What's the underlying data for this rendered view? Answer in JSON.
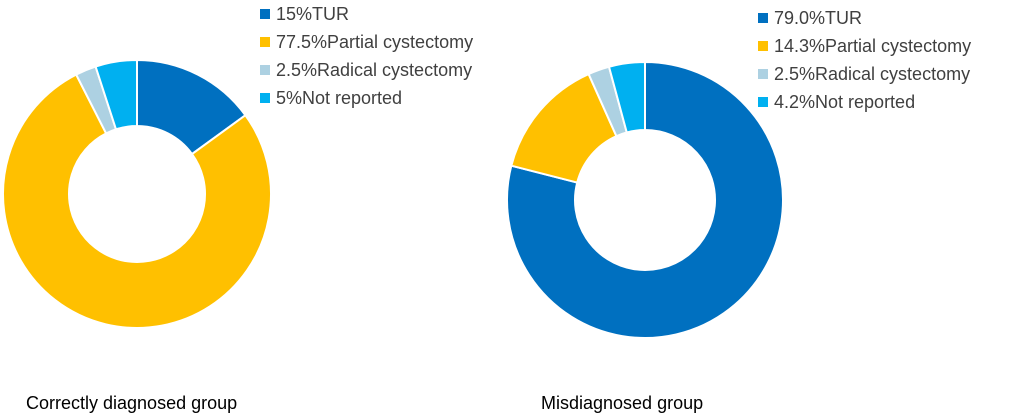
{
  "chart_data": [
    {
      "type": "pie",
      "donut": true,
      "caption": "Correctly diagnosed group",
      "slices": [
        {
          "label": "15%TUR",
          "value": 15,
          "color": "#0070C0"
        },
        {
          "label": "77.5%Partial cystectomy",
          "value": 77.5,
          "color": "#FFC000"
        },
        {
          "label": "2.5%Radical cystectomy",
          "value": 2.5,
          "color": "#ADD1E2"
        },
        {
          "label": "5%Not reported",
          "value": 5,
          "color": "#00B0F0"
        }
      ],
      "legend_position": "top-right"
    },
    {
      "type": "pie",
      "donut": true,
      "caption": "Misdiagnosed group",
      "slices": [
        {
          "label": "79.0%TUR",
          "value": 79.0,
          "color": "#0070C0"
        },
        {
          "label": "14.3%Partial cystectomy",
          "value": 14.3,
          "color": "#FFC000"
        },
        {
          "label": "2.5%Radical cystectomy",
          "value": 2.5,
          "color": "#ADD1E2"
        },
        {
          "label": "4.2%Not reported",
          "value": 4.2,
          "color": "#00B0F0"
        }
      ],
      "legend_position": "top-right"
    }
  ]
}
